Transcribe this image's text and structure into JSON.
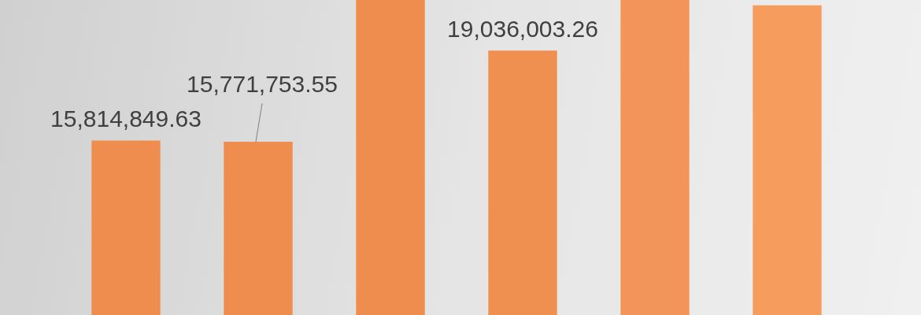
{
  "chart_data": {
    "type": "bar",
    "categories": [
      null,
      null,
      null,
      null,
      null,
      null
    ],
    "values": [
      15814849.63,
      15771753.55,
      20850000,
      19036003.26,
      20850000,
      20660000
    ],
    "value_labels": [
      "15,814,849.63",
      "15,771,753.55",
      null,
      "19,036,003.26",
      null,
      null
    ],
    "colors": [
      "#ee8d4d",
      "#ee8d4d",
      "#ee8d4d",
      "#ef8f50",
      "#f2955a",
      "#f69c5c"
    ],
    "ylim": [
      9560000,
      20850000
    ],
    "legend": false
  }
}
